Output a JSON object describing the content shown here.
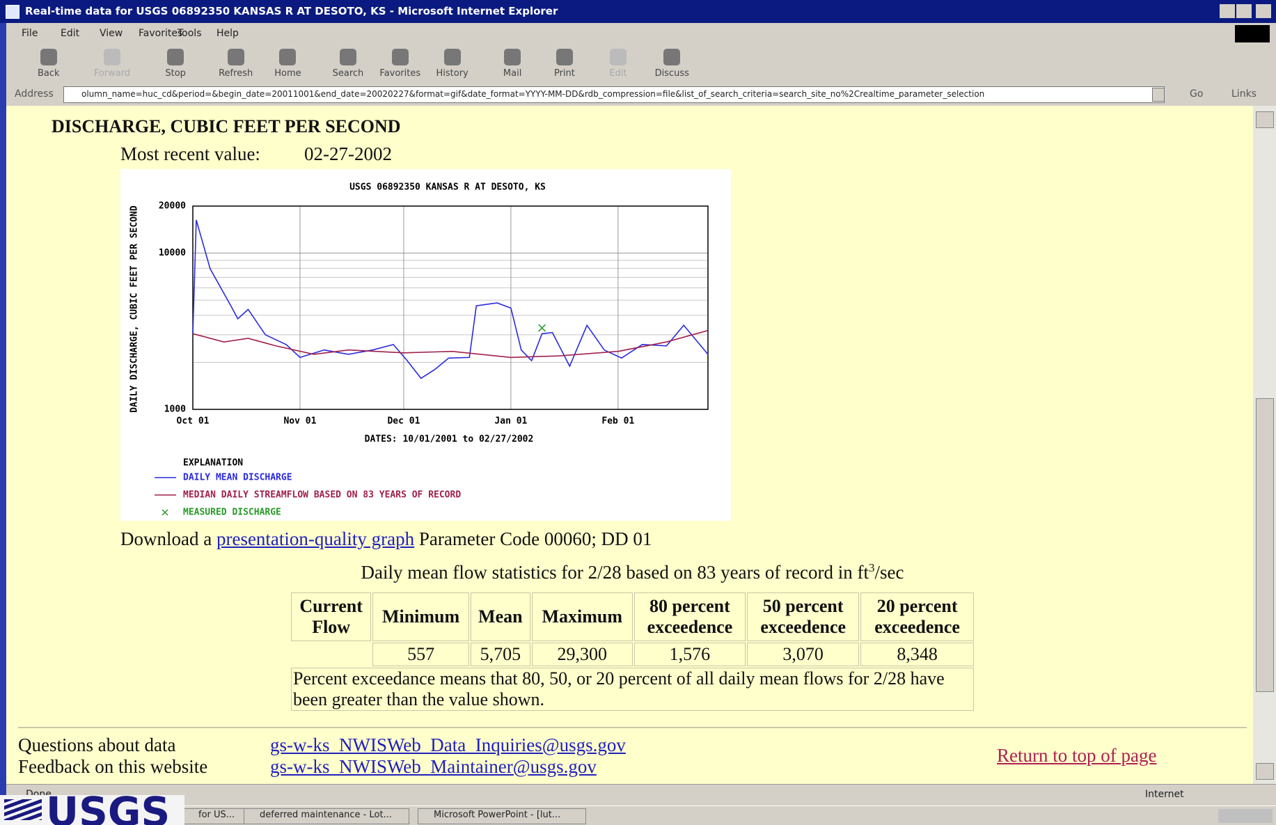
{
  "window": {
    "title": "Real-time data for USGS 06892350 KANSAS R AT DESOTO, KS - Microsoft Internet Explorer",
    "menu": [
      "File",
      "Edit",
      "View",
      "Favorites",
      "Tools",
      "Help"
    ],
    "toolbar": [
      "Back",
      "Forward",
      "Stop",
      "Refresh",
      "Home",
      "Search",
      "Favorites",
      "History",
      "Mail",
      "Print",
      "Edit",
      "Discuss"
    ],
    "address_label": "Address",
    "url": "olumn_name=huc_cd&period=&begin_date=20011001&end_date=20020227&format=gif&date_format=YYYY-MM-DD&rdb_compression=file&list_of_search_criteria=search_site_no%2Crealtime_parameter_selection",
    "go": "Go",
    "links": "Links",
    "status": "Done",
    "zone": "Internet"
  },
  "taskbar": [
    "for US...",
    "deferred maintenance - Lot...",
    "Microsoft PowerPoint - [lut..."
  ],
  "logo": "USGS",
  "content": {
    "heading": "DISCHARGE, CUBIC FEET PER SECOND",
    "recent_label": "Most recent value:",
    "recent_date": "02-27-2002",
    "download_prefix": "Download a",
    "download_link": "presentation-quality graph",
    "parameter": "Parameter Code 00060; DD 01",
    "stats_caption": "Daily mean flow statistics for 2/28 based on 83 years of record in ft",
    "stats_caption_sup": "3",
    "stats_caption_suffix": "/sec",
    "table_headers": [
      "Current Flow",
      "Minimum",
      "Mean",
      "Maximum",
      "80 percent exceedence",
      "50 percent exceedence",
      "20 percent exceedence"
    ],
    "table_values": [
      "557",
      "5,705",
      "29,300",
      "1,576",
      "3,070",
      "8,348"
    ],
    "table_note": "Percent exceedance means that 80, 50, or 20 percent of all daily mean flows for 2/28 have been greater than the value shown.",
    "footer_labels": [
      "Questions about data",
      "Feedback on this website"
    ],
    "footer_emails": [
      "gs-w-ks_NWISWeb_Data_Inquiries@usgs.gov",
      "gs-w-ks_NWISWeb_Maintainer@usgs.gov"
    ],
    "return_link": "Return to top of page"
  },
  "chart_data": {
    "type": "line",
    "title": "USGS 06892350 KANSAS R AT DESOTO, KS",
    "ylabel": "DAILY DISCHARGE, CUBIC FEET PER SECOND",
    "xlabel": "DATES: 10/01/2001 to 02/27/2002",
    "legend_title": "EXPLANATION",
    "log_y": true,
    "grid": true,
    "ylim": [
      1000,
      20000
    ],
    "yticks": [
      1000,
      10000,
      20000
    ],
    "minor_yticks": [
      2000,
      3000,
      4000,
      5000,
      6000,
      7000,
      8000,
      9000
    ],
    "xlim": [
      "10/01/2001",
      "02/27/2002"
    ],
    "xticks": [
      {
        "value": "10/01/2001",
        "label": "Oct 01"
      },
      {
        "value": "11/01/2001",
        "label": "Nov 01"
      },
      {
        "value": "12/01/2001",
        "label": "Dec 01"
      },
      {
        "value": "01/01/2002",
        "label": "Jan 01"
      },
      {
        "value": "02/01/2002",
        "label": "Feb 01"
      }
    ],
    "series": [
      {
        "name": "DAILY MEAN DISCHARGE",
        "color": "#2a2ae0",
        "marker": "line",
        "x": [
          "10/01/2001",
          "10/02/2001",
          "10/06/2001",
          "10/12/2001",
          "10/14/2001",
          "10/17/2001",
          "10/22/2001",
          "10/28/2001",
          "11/01/2001",
          "11/08/2001",
          "11/15/2001",
          "11/22/2001",
          "11/28/2001",
          "12/02/2001",
          "12/06/2001",
          "12/10/2001",
          "12/14/2001",
          "12/20/2001",
          "12/22/2001",
          "12/28/2001",
          "01/01/2002",
          "01/04/2002",
          "01/07/2002",
          "01/10/2002",
          "01/13/2002",
          "01/18/2002",
          "01/23/2002",
          "01/28/2002",
          "02/02/2002",
          "02/08/2002",
          "02/15/2002",
          "02/20/2002",
          "02/27/2002"
        ],
        "values": [
          3050,
          16300,
          7950,
          4600,
          3800,
          4360,
          3000,
          2600,
          2150,
          2400,
          2250,
          2400,
          2600,
          2050,
          1580,
          1800,
          2130,
          2150,
          4600,
          4800,
          4450,
          2400,
          2050,
          3050,
          3100,
          1890,
          3450,
          2400,
          2130,
          2600,
          2550,
          3450,
          2250
        ]
      },
      {
        "name": "MEDIAN DAILY STREAMFLOW BASED ON 83 YEARS OF RECORD",
        "color": "#a0204a",
        "marker": "line",
        "x": [
          "10/01/2001",
          "10/10/2001",
          "10/17/2001",
          "10/25/2001",
          "11/05/2001",
          "11/15/2001",
          "12/01/2001",
          "12/15/2001",
          "01/01/2002",
          "01/15/2002",
          "02/01/2002",
          "02/15/2002",
          "02/27/2002"
        ],
        "values": [
          3050,
          2700,
          2850,
          2550,
          2250,
          2400,
          2300,
          2350,
          2150,
          2200,
          2350,
          2700,
          3200
        ]
      },
      {
        "name": "MEASURED DISCHARGE",
        "color": "#2a9a2a",
        "marker": "x",
        "x": [
          "01/10/2002"
        ],
        "values": [
          3320
        ]
      }
    ]
  }
}
